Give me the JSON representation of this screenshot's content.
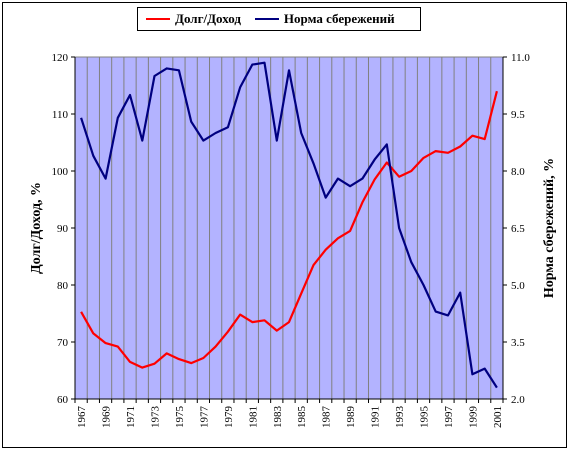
{
  "chart_data": {
    "type": "line",
    "legend_position": "top",
    "grid": true,
    "x": [
      "1967",
      "1968",
      "1969",
      "1970",
      "1971",
      "1972",
      "1973",
      "1974",
      "1975",
      "1976",
      "1977",
      "1978",
      "1979",
      "1980",
      "1981",
      "1982",
      "1983",
      "1984",
      "1985",
      "1986",
      "1987",
      "1988",
      "1989",
      "1990",
      "1991",
      "1992",
      "1993",
      "1994",
      "1995",
      "1996",
      "1997",
      "1998",
      "1999",
      "2000",
      "2001"
    ],
    "x_tick_labels": [
      "1967",
      "1969",
      "1971",
      "1973",
      "1975",
      "1977",
      "1979",
      "1981",
      "1983",
      "1985",
      "1987",
      "1989",
      "1991",
      "1993",
      "1995",
      "1997",
      "1999",
      "2001"
    ],
    "ylabel_left": "Долг/Доход, %",
    "ylabel_right": "Норма сбережений, %",
    "ylim_left": [
      60,
      120
    ],
    "ylim_right": [
      2.0,
      11.0
    ],
    "yticks_left": [
      "60",
      "70",
      "80",
      "90",
      "100",
      "110",
      "120"
    ],
    "yticks_right": [
      "2.0",
      "3.5",
      "5.0",
      "6.5",
      "8.0",
      "9.5",
      "11.0"
    ],
    "series": [
      {
        "name": "Долг/Доход",
        "axis": "left",
        "color": "#ff0000",
        "values": [
          75.3,
          71.5,
          69.8,
          69.2,
          66.5,
          65.5,
          66.2,
          68.0,
          67.0,
          66.3,
          67.2,
          69.2,
          71.8,
          74.8,
          73.5,
          73.8,
          72.0,
          73.5,
          78.5,
          83.5,
          86.2,
          88.2,
          89.5,
          94.5,
          98.5,
          101.5,
          99.0,
          100.0,
          102.3,
          103.5,
          103.2,
          104.3,
          106.2,
          105.6,
          114.0
        ]
      },
      {
        "name": "Норма сбережений",
        "axis": "right",
        "color": "#000080",
        "values": [
          9.4,
          8.4,
          7.8,
          9.4,
          10.0,
          8.8,
          10.5,
          10.7,
          10.65,
          9.3,
          8.8,
          9.0,
          9.15,
          10.2,
          10.8,
          10.85,
          8.8,
          10.65,
          9.0,
          8.2,
          7.3,
          7.8,
          7.6,
          7.8,
          8.3,
          8.7,
          6.5,
          5.6,
          5.0,
          4.3,
          4.2,
          4.8,
          2.65,
          2.8,
          2.3
        ]
      }
    ]
  },
  "colors": {
    "plot_background": "#b3b3ff",
    "grid": "#808080"
  }
}
